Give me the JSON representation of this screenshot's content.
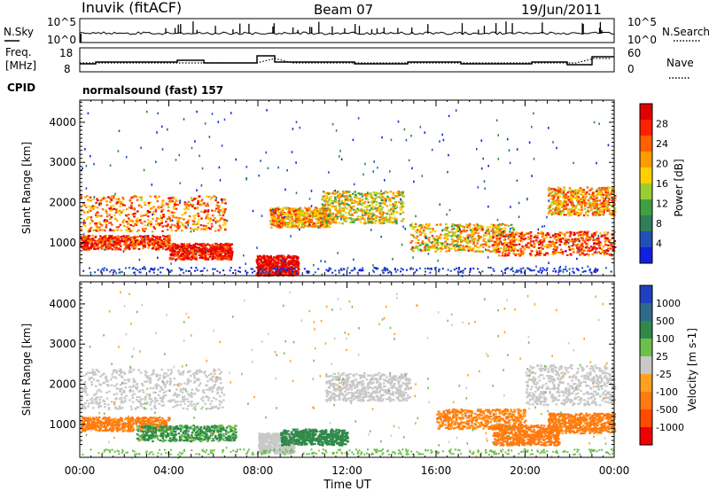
{
  "header": {
    "station": "Inuvik (fitACF)",
    "beam": "Beam 07",
    "date": "19/Jun/2011"
  },
  "panels": {
    "nsky": {
      "label": "N.Sky",
      "tick_top": "10^5",
      "tick_bottom": "10^0"
    },
    "nsearch": {
      "label": "N.Search",
      "tick_top": "10^5",
      "tick_bottom": "10^0"
    },
    "freq": {
      "label_line1": "Freq.",
      "label_line2": "[MHz]",
      "tick_top": "18",
      "tick_bottom": "8"
    },
    "nave": {
      "label": "Nave",
      "tick_top": "60",
      "tick_bottom": "0"
    },
    "cpid": {
      "label": "CPID",
      "text": "normalsound (fast) 157"
    }
  },
  "chart_data": [
    {
      "type": "heatmap",
      "name": "power",
      "ylabel": "Slant Range [km]",
      "xlabel": "Time UT",
      "xlim_hours": [
        0,
        24
      ],
      "ylim": [
        180,
        4550
      ],
      "y_ticks": [
        "1000",
        "2000",
        "3000",
        "4000"
      ],
      "x_ticks": [
        "00:00",
        "04:00",
        "08:00",
        "12:00",
        "16:00",
        "20:00",
        "00:00"
      ],
      "colorbar": {
        "label": "Power [dB]",
        "ticks": [
          "28",
          "24",
          "20",
          "16",
          "12",
          "8",
          "4"
        ],
        "colors": [
          "#1020e0",
          "#2050b8",
          "#2f7f58",
          "#3ea040",
          "#9acd32",
          "#ffd000",
          "#ff9a00",
          "#ff6000",
          "#ff2000",
          "#e00000"
        ]
      },
      "echo_bands": [
        {
          "t": [
            0.0,
            4.0
          ],
          "r": [
            850,
            1200
          ],
          "level": 24
        },
        {
          "t": [
            4.0,
            6.8
          ],
          "r": [
            600,
            1000
          ],
          "level": 26
        },
        {
          "t": [
            0.0,
            6.5
          ],
          "r": [
            1300,
            2200
          ],
          "level": 20
        },
        {
          "t": [
            7.9,
            9.8
          ],
          "r": [
            200,
            700
          ],
          "level": 28
        },
        {
          "t": [
            8.5,
            11.2
          ],
          "r": [
            1400,
            1900
          ],
          "level": 18
        },
        {
          "t": [
            10.8,
            14.5
          ],
          "r": [
            1500,
            2300
          ],
          "level": 14
        },
        {
          "t": [
            14.8,
            19.5
          ],
          "r": [
            800,
            1500
          ],
          "level": 16
        },
        {
          "t": [
            18.5,
            24.0
          ],
          "r": [
            700,
            1300
          ],
          "level": 22
        },
        {
          "t": [
            21.0,
            24.0
          ],
          "r": [
            1700,
            2400
          ],
          "level": 18
        }
      ]
    },
    {
      "type": "heatmap",
      "name": "velocity",
      "ylabel": "Slant Range [km]",
      "xlabel": "Time UT",
      "xlim_hours": [
        0,
        24
      ],
      "ylim": [
        180,
        4550
      ],
      "y_ticks": [
        "1000",
        "2000",
        "3000",
        "4000"
      ],
      "x_ticks": [
        "00:00",
        "04:00",
        "08:00",
        "12:00",
        "16:00",
        "20:00",
        "00:00"
      ],
      "colorbar": {
        "label": "Velocity [m s-1]",
        "ticks": [
          "1000",
          "500",
          "100",
          "25",
          "-25",
          "-100",
          "-500",
          "-1000"
        ],
        "colors": [
          "#2040c0",
          "#2e6a8a",
          "#2f8a4a",
          "#6cc04a",
          "#c8c8c8",
          "#ffa020",
          "#ff7a10",
          "#ff4a00",
          "#ee0000"
        ]
      },
      "echo_bands": [
        {
          "t": [
            0.0,
            6.5
          ],
          "r": [
            1400,
            2400
          ],
          "vel": 0
        },
        {
          "t": [
            0.0,
            4.0
          ],
          "r": [
            850,
            1200
          ],
          "vel": -200
        },
        {
          "t": [
            2.5,
            7.0
          ],
          "r": [
            600,
            1000
          ],
          "vel": 150
        },
        {
          "t": [
            8.0,
            9.6
          ],
          "r": [
            300,
            800
          ],
          "vel": 0
        },
        {
          "t": [
            9.0,
            12.0
          ],
          "r": [
            500,
            900
          ],
          "vel": 250
        },
        {
          "t": [
            11.0,
            14.8
          ],
          "r": [
            1600,
            2300
          ],
          "vel": 0
        },
        {
          "t": [
            16.0,
            20.0
          ],
          "r": [
            900,
            1400
          ],
          "vel": -150
        },
        {
          "t": [
            18.5,
            21.5
          ],
          "r": [
            500,
            1000
          ],
          "vel": -300
        },
        {
          "t": [
            21.0,
            24.0
          ],
          "r": [
            800,
            1300
          ],
          "vel": -200
        },
        {
          "t": [
            20.0,
            24.0
          ],
          "r": [
            1500,
            2500
          ],
          "vel": 0
        }
      ]
    }
  ]
}
